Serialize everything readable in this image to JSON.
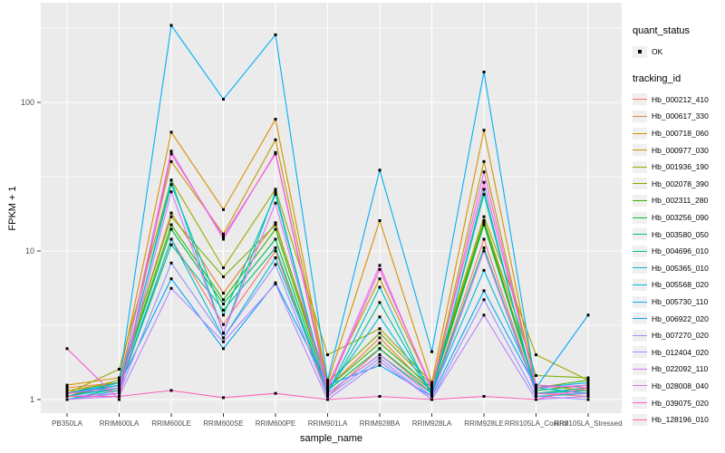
{
  "legend": {
    "quant_status_title": "quant_status",
    "ok_label": "OK",
    "tracking_title": "tracking_id"
  },
  "colors": {
    "panel_bg": "#EBEBEB",
    "grid": "#FFFFFF",
    "tick_text": "#4D4D4D",
    "point": "#000000",
    "legend_key_bg": "#F0F0F0"
  },
  "chart_data": {
    "type": "line",
    "title": "",
    "xlabel": "sample_name",
    "ylabel": "FPKM + 1",
    "y_scale": "log10",
    "y_ticks": [
      1,
      10,
      100
    ],
    "y_minor": [
      3.162,
      31.62,
      316.2
    ],
    "ylim": [
      1,
      450
    ],
    "grid": "on",
    "legend_position": "right",
    "point_marker": "black-square",
    "categories": [
      "PB350LA",
      "RRIM600LA",
      "RRIM600LE",
      "RRIM600SE",
      "RRIM600PE",
      "RRIM901LA",
      "RRIM928BA",
      "RRIM928LA",
      "RRIM928LE",
      "RRII105LA_Control",
      "RRII105LA_Stressed"
    ],
    "series": [
      {
        "name": "Hb_000212_410",
        "color": "#F8766D",
        "values": [
          1.1,
          1.15,
          12,
          3.2,
          10,
          1.05,
          2.2,
          1.1,
          12,
          1.1,
          1.05
        ]
      },
      {
        "name": "Hb_000617_330",
        "color": "#EA8331",
        "values": [
          1.2,
          1.3,
          18,
          5.2,
          15.5,
          1.2,
          2.6,
          1.15,
          16,
          1.2,
          1.1
        ]
      },
      {
        "name": "Hb_000718_060",
        "color": "#D89000",
        "values": [
          1.25,
          1.4,
          63,
          19,
          77,
          1.3,
          16,
          1.3,
          65,
          1.25,
          1.15
        ]
      },
      {
        "name": "Hb_000977_030",
        "color": "#C09B00",
        "values": [
          1.15,
          1.3,
          40,
          13,
          56,
          1.25,
          6.5,
          1.2,
          40,
          1.2,
          1.1
        ]
      },
      {
        "name": "Hb_001936_190",
        "color": "#A3A500",
        "values": [
          1.1,
          1.6,
          30,
          7.7,
          26,
          2.0,
          3.0,
          1.3,
          17,
          2.0,
          1.35
        ]
      },
      {
        "name": "Hb_002078_390",
        "color": "#7CAE00",
        "values": [
          1.1,
          1.35,
          17,
          6.7,
          15,
          1.3,
          2.8,
          1.25,
          16,
          1.45,
          1.4
        ]
      },
      {
        "name": "Hb_002311_280",
        "color": "#39B600",
        "values": [
          1.05,
          1.3,
          15,
          4.7,
          14,
          1.2,
          2.4,
          1.2,
          15.5,
          1.2,
          1.35
        ]
      },
      {
        "name": "Hb_003256_090",
        "color": "#00BB4E",
        "values": [
          1.05,
          1.25,
          14,
          4.4,
          12,
          1.15,
          2.2,
          1.15,
          15,
          1.15,
          1.25
        ]
      },
      {
        "name": "Hb_003580_050",
        "color": "#00BF7D",
        "values": [
          1.0,
          1.2,
          11,
          4.0,
          10.5,
          1.1,
          2.0,
          1.1,
          10.5,
          1.1,
          1.2
        ]
      },
      {
        "name": "Hb_004696_010",
        "color": "#00C1A3",
        "values": [
          1.0,
          1.2,
          28,
          3.7,
          24,
          1.1,
          4.5,
          1.1,
          24,
          1.1,
          1.15
        ]
      },
      {
        "name": "Hb_005365_010",
        "color": "#00BFC4",
        "values": [
          1.0,
          1.15,
          30,
          2.8,
          25,
          1.1,
          5.7,
          1.05,
          26,
          1.05,
          1.1
        ]
      },
      {
        "name": "Hb_005568_020",
        "color": "#00BBDA",
        "values": [
          1.05,
          1.2,
          12,
          2.6,
          9,
          1.15,
          3.6,
          1.1,
          7.4,
          1.2,
          1.1
        ]
      },
      {
        "name": "Hb_005730_110",
        "color": "#00B0F6",
        "values": [
          1.1,
          1.3,
          330,
          105,
          285,
          1.35,
          35,
          2.1,
          160,
          1.2,
          1.3
        ]
      },
      {
        "name": "Hb_006922_020",
        "color": "#00A5FF",
        "values": [
          1.1,
          1.25,
          6.5,
          2.2,
          6.1,
          1.25,
          1.7,
          1.05,
          5.4,
          1.2,
          3.7
        ]
      },
      {
        "name": "Hb_007270_020",
        "color": "#9590FF",
        "values": [
          1.0,
          1.1,
          8.3,
          2.6,
          8.1,
          1.05,
          1.9,
          1.0,
          4.7,
          1.05,
          1.0
        ]
      },
      {
        "name": "Hb_012404_020",
        "color": "#B983FF",
        "values": [
          1.0,
          1.05,
          5.6,
          2.45,
          6.0,
          1.0,
          1.8,
          1.0,
          3.7,
          1.0,
          1.05
        ]
      },
      {
        "name": "Hb_022092_110",
        "color": "#D376FF",
        "values": [
          1.05,
          1.1,
          25,
          2.8,
          21,
          1.1,
          2.0,
          1.05,
          10,
          1.1,
          1.1
        ]
      },
      {
        "name": "Hb_028008_040",
        "color": "#E76BF3",
        "values": [
          1.1,
          1.2,
          47,
          12,
          46,
          1.2,
          8.0,
          1.15,
          34,
          1.2,
          1.25
        ]
      },
      {
        "name": "Hb_039075_020",
        "color": "#F562D5",
        "values": [
          2.2,
          1.0,
          45,
          12.5,
          45,
          1.15,
          7.5,
          1.2,
          29,
          1.25,
          1.2
        ]
      },
      {
        "name": "Hb_128196_010",
        "color": "#FD61B7",
        "values": [
          1.05,
          1.05,
          1.15,
          1.03,
          1.1,
          1.0,
          1.05,
          1.0,
          1.05,
          1.0,
          1.2
        ]
      }
    ]
  }
}
